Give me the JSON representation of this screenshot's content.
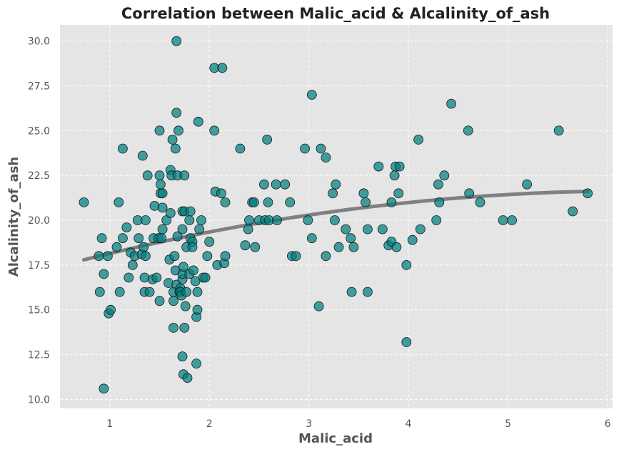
{
  "chart_data": {
    "type": "scatter",
    "title": "Correlation between Malic_acid & Alcalinity_of_ash",
    "xlabel": "Malic_acid",
    "ylabel": "Alcalinity_of_ash",
    "xlim": [
      0.5,
      6.05
    ],
    "ylim": [
      9.5,
      30.9
    ],
    "xticks": [
      1,
      2,
      3,
      4,
      5,
      6
    ],
    "xtick_labels": [
      "1",
      "2",
      "3",
      "4",
      "5",
      "6"
    ],
    "yticks": [
      10,
      12.5,
      15,
      17.5,
      20,
      22.5,
      25,
      27.5,
      30
    ],
    "ytick_labels": [
      "10.0",
      "12.5",
      "15.0",
      "17.5",
      "20.0",
      "22.5",
      "25.0",
      "27.5",
      "30.0"
    ],
    "grid": true,
    "legend": false,
    "colors": {
      "plot_background": "#e5e5e5",
      "grid": "#ffffff",
      "point_fill": "#008080",
      "point_edge": "#1a1a1a",
      "trend_line": "#808080"
    },
    "points": [
      [
        0.74,
        21.0
      ],
      [
        0.89,
        18.0
      ],
      [
        0.9,
        16.0
      ],
      [
        0.92,
        19.0
      ],
      [
        0.94,
        17.0
      ],
      [
        0.94,
        10.6
      ],
      [
        0.98,
        18.0
      ],
      [
        0.99,
        14.8
      ],
      [
        1.01,
        15.0
      ],
      [
        1.07,
        18.5
      ],
      [
        1.09,
        21.0
      ],
      [
        1.1,
        16.0
      ],
      [
        1.13,
        19.0
      ],
      [
        1.13,
        24.0
      ],
      [
        1.17,
        19.6
      ],
      [
        1.19,
        16.8
      ],
      [
        1.21,
        18.2
      ],
      [
        1.23,
        17.5
      ],
      [
        1.25,
        18.0
      ],
      [
        1.28,
        20.0
      ],
      [
        1.29,
        19.0
      ],
      [
        1.32,
        18.1
      ],
      [
        1.33,
        23.6
      ],
      [
        1.34,
        18.5
      ],
      [
        1.35,
        16.0
      ],
      [
        1.35,
        16.8
      ],
      [
        1.36,
        20.0
      ],
      [
        1.36,
        18.0
      ],
      [
        1.38,
        22.5
      ],
      [
        1.4,
        16.0
      ],
      [
        1.43,
        16.7
      ],
      [
        1.44,
        19.0
      ],
      [
        1.45,
        20.8
      ],
      [
        1.47,
        16.8
      ],
      [
        1.49,
        19.0
      ],
      [
        1.5,
        22.5
      ],
      [
        1.5,
        15.5
      ],
      [
        1.5,
        25.0
      ],
      [
        1.51,
        22.0
      ],
      [
        1.51,
        21.5
      ],
      [
        1.52,
        19.0
      ],
      [
        1.53,
        21.5
      ],
      [
        1.53,
        20.7
      ],
      [
        1.53,
        19.5
      ],
      [
        1.57,
        20.0
      ],
      [
        1.59,
        16.5
      ],
      [
        1.6,
        17.8
      ],
      [
        1.61,
        20.4
      ],
      [
        1.61,
        22.8
      ],
      [
        1.62,
        22.5
      ],
      [
        1.63,
        24.5
      ],
      [
        1.64,
        16.0
      ],
      [
        1.64,
        14.0
      ],
      [
        1.64,
        15.5
      ],
      [
        1.65,
        18.0
      ],
      [
        1.66,
        24.0
      ],
      [
        1.66,
        17.2
      ],
      [
        1.67,
        30.0
      ],
      [
        1.67,
        16.4
      ],
      [
        1.67,
        26.0
      ],
      [
        1.68,
        22.5
      ],
      [
        1.68,
        19.1
      ],
      [
        1.69,
        25.0
      ],
      [
        1.7,
        16.0
      ],
      [
        1.71,
        16.2
      ],
      [
        1.71,
        16.0
      ],
      [
        1.72,
        15.8
      ],
      [
        1.73,
        19.5
      ],
      [
        1.73,
        16.7
      ],
      [
        1.73,
        17.0
      ],
      [
        1.73,
        20.5
      ],
      [
        1.73,
        12.4
      ],
      [
        1.74,
        17.4
      ],
      [
        1.74,
        11.4
      ],
      [
        1.75,
        20.5
      ],
      [
        1.75,
        14.0
      ],
      [
        1.75,
        22.5
      ],
      [
        1.76,
        15.2
      ],
      [
        1.77,
        18.5
      ],
      [
        1.77,
        16.0
      ],
      [
        1.78,
        11.2
      ],
      [
        1.8,
        17.0
      ],
      [
        1.8,
        20.0
      ],
      [
        1.81,
        20.5
      ],
      [
        1.81,
        19.0
      ],
      [
        1.83,
        18.8
      ],
      [
        1.83,
        18.5
      ],
      [
        1.84,
        17.2
      ],
      [
        1.86,
        16.6
      ],
      [
        1.87,
        14.6
      ],
      [
        1.87,
        12.0
      ],
      [
        1.88,
        16.0
      ],
      [
        1.88,
        15.0
      ],
      [
        1.89,
        25.5
      ],
      [
        1.9,
        19.5
      ],
      [
        1.92,
        20.0
      ],
      [
        1.94,
        16.8
      ],
      [
        1.96,
        16.8
      ],
      [
        1.98,
        18.0
      ],
      [
        2.0,
        18.8
      ],
      [
        2.05,
        28.5
      ],
      [
        2.05,
        25.0
      ],
      [
        2.06,
        21.6
      ],
      [
        2.08,
        17.5
      ],
      [
        2.12,
        21.5
      ],
      [
        2.13,
        28.5
      ],
      [
        2.15,
        17.6
      ],
      [
        2.16,
        18.0
      ],
      [
        2.16,
        21.0
      ],
      [
        2.31,
        24.0
      ],
      [
        2.36,
        18.6
      ],
      [
        2.39,
        19.5
      ],
      [
        2.4,
        20.0
      ],
      [
        2.43,
        21.0
      ],
      [
        2.45,
        21.0
      ],
      [
        2.46,
        18.5
      ],
      [
        2.5,
        20.0
      ],
      [
        2.55,
        22.0
      ],
      [
        2.56,
        20.0
      ],
      [
        2.58,
        24.5
      ],
      [
        2.59,
        21.0
      ],
      [
        2.6,
        20.0
      ],
      [
        2.67,
        22.0
      ],
      [
        2.68,
        20.0
      ],
      [
        2.76,
        22.0
      ],
      [
        2.81,
        21.0
      ],
      [
        2.83,
        18.0
      ],
      [
        2.87,
        18.0
      ],
      [
        2.96,
        24.0
      ],
      [
        2.99,
        20.0
      ],
      [
        3.03,
        19.0
      ],
      [
        3.03,
        27.0
      ],
      [
        3.1,
        15.2
      ],
      [
        3.12,
        24.0
      ],
      [
        3.17,
        18.0
      ],
      [
        3.17,
        23.5
      ],
      [
        3.24,
        21.5
      ],
      [
        3.26,
        20.0
      ],
      [
        3.27,
        22.0
      ],
      [
        3.3,
        18.5
      ],
      [
        3.37,
        19.5
      ],
      [
        3.42,
        19.0
      ],
      [
        3.43,
        16.0
      ],
      [
        3.45,
        18.5
      ],
      [
        3.55,
        21.5
      ],
      [
        3.57,
        21.0
      ],
      [
        3.59,
        16.0
      ],
      [
        3.59,
        19.5
      ],
      [
        3.7,
        23.0
      ],
      [
        3.74,
        19.5
      ],
      [
        3.8,
        18.6
      ],
      [
        3.83,
        18.8
      ],
      [
        3.83,
        21.0
      ],
      [
        3.86,
        22.5
      ],
      [
        3.87,
        23.0
      ],
      [
        3.88,
        18.5
      ],
      [
        3.9,
        21.5
      ],
      [
        3.91,
        23.0
      ],
      [
        3.98,
        17.5
      ],
      [
        3.98,
        13.2
      ],
      [
        4.04,
        18.9
      ],
      [
        4.1,
        24.5
      ],
      [
        4.12,
        19.5
      ],
      [
        4.28,
        20.0
      ],
      [
        4.3,
        22.0
      ],
      [
        4.31,
        21.0
      ],
      [
        4.36,
        22.5
      ],
      [
        4.43,
        26.5
      ],
      [
        4.6,
        25.0
      ],
      [
        4.61,
        21.5
      ],
      [
        4.72,
        21.0
      ],
      [
        4.95,
        20.0
      ],
      [
        5.04,
        20.0
      ],
      [
        5.19,
        22.0
      ],
      [
        5.51,
        25.0
      ],
      [
        5.65,
        20.5
      ],
      [
        5.8,
        21.5
      ]
    ]
  }
}
